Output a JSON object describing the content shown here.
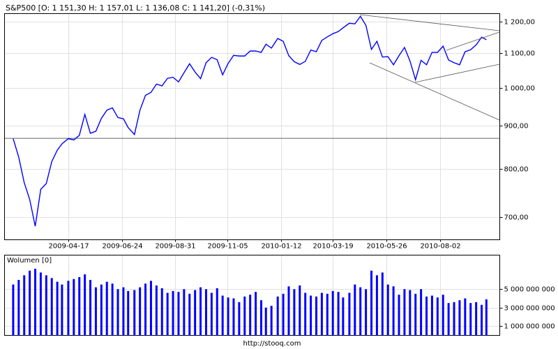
{
  "chart_data": [
    {
      "type": "line",
      "title": "S&P500 [O: 1 151,30  H: 1 157,01  L: 1 136,08  C: 1 141,20] (-0,31%)",
      "x": [
        "2009-02-06",
        "2009-02-13",
        "2009-02-20",
        "2009-02-27",
        "2009-03-06",
        "2009-03-13",
        "2009-03-20",
        "2009-03-27",
        "2009-04-03",
        "2009-04-09",
        "2009-04-17",
        "2009-04-24",
        "2009-05-01",
        "2009-05-08",
        "2009-05-15",
        "2009-05-22",
        "2009-05-29",
        "2009-06-05",
        "2009-06-12",
        "2009-06-19",
        "2009-06-26",
        "2009-07-02",
        "2009-07-10",
        "2009-07-17",
        "2009-07-24",
        "2009-07-31",
        "2009-08-07",
        "2009-08-14",
        "2009-08-21",
        "2009-08-28",
        "2009-09-04",
        "2009-09-11",
        "2009-09-18",
        "2009-09-25",
        "2009-10-02",
        "2009-10-09",
        "2009-10-16",
        "2009-10-23",
        "2009-10-30",
        "2009-11-06",
        "2009-11-13",
        "2009-11-20",
        "2009-11-27",
        "2009-12-04",
        "2009-12-11",
        "2009-12-18",
        "2009-12-24",
        "2009-12-31",
        "2010-01-08",
        "2010-01-15",
        "2010-01-22",
        "2010-01-29",
        "2010-02-05",
        "2010-02-12",
        "2010-02-19",
        "2010-02-26",
        "2010-03-05",
        "2010-03-12",
        "2010-03-19",
        "2010-03-26",
        "2010-04-01",
        "2010-04-09",
        "2010-04-16",
        "2010-04-23",
        "2010-04-30",
        "2010-05-07",
        "2010-05-14",
        "2010-05-21",
        "2010-05-28",
        "2010-06-04",
        "2010-06-11",
        "2010-06-18",
        "2010-06-25",
        "2010-07-02",
        "2010-07-09",
        "2010-07-16",
        "2010-07-23",
        "2010-07-30",
        "2010-08-06",
        "2010-08-13",
        "2010-08-20",
        "2010-08-27",
        "2010-09-03",
        "2010-09-10",
        "2010-09-17",
        "2010-09-24",
        "2010-09-30"
      ],
      "values": [
        869,
        826,
        770,
        735,
        683,
        756,
        768,
        816,
        842,
        857,
        869,
        866,
        877,
        929,
        882,
        887,
        919,
        940,
        946,
        921,
        918,
        896,
        879,
        940,
        979,
        987,
        1010,
        1005,
        1026,
        1029,
        1016,
        1042,
        1068,
        1044,
        1025,
        1071,
        1087,
        1080,
        1036,
        1069,
        1093,
        1091,
        1091,
        1106,
        1106,
        1102,
        1127,
        1115,
        1145,
        1136,
        1092,
        1074,
        1066,
        1075,
        1109,
        1104,
        1139,
        1150,
        1160,
        1167,
        1179,
        1194,
        1192,
        1217,
        1187,
        1111,
        1136,
        1088,
        1089,
        1065,
        1092,
        1117,
        1076,
        1022,
        1078,
        1065,
        1102,
        1102,
        1121,
        1079,
        1071,
        1065,
        1104,
        1110,
        1125,
        1149,
        1141
      ],
      "color": "#0000ff",
      "xlim": [
        "2009-01-26",
        "2010-10-17"
      ],
      "xticks": [
        "2009-04-17",
        "2009-06-24",
        "2009-08-31",
        "2009-11-05",
        "2010-01-12",
        "2010-03-19",
        "2010-05-26",
        "2010-08-02"
      ],
      "ylim": [
        658,
        1226
      ],
      "yticks": [
        {
          "value": 700,
          "label": "700,00"
        },
        {
          "value": 800,
          "label": "800,00"
        },
        {
          "value": 900,
          "label": "900,00"
        },
        {
          "value": 1000,
          "label": "1 000,00"
        },
        {
          "value": 1100,
          "label": "1 100,00"
        },
        {
          "value": 1200,
          "label": "1 200,00"
        }
      ],
      "log_scale": true,
      "grid": true,
      "reference_line": 870
    },
    {
      "type": "bar",
      "title": "Wolumen [0]",
      "x": [
        "2009-02-06",
        "2009-02-13",
        "2009-02-20",
        "2009-02-27",
        "2009-03-06",
        "2009-03-13",
        "2009-03-20",
        "2009-03-27",
        "2009-04-03",
        "2009-04-09",
        "2009-04-17",
        "2009-04-24",
        "2009-05-01",
        "2009-05-08",
        "2009-05-15",
        "2009-05-22",
        "2009-05-29",
        "2009-06-05",
        "2009-06-12",
        "2009-06-19",
        "2009-06-26",
        "2009-07-02",
        "2009-07-10",
        "2009-07-17",
        "2009-07-24",
        "2009-07-31",
        "2009-08-07",
        "2009-08-14",
        "2009-08-21",
        "2009-08-28",
        "2009-09-04",
        "2009-09-11",
        "2009-09-18",
        "2009-09-25",
        "2009-10-02",
        "2009-10-09",
        "2009-10-16",
        "2009-10-23",
        "2009-10-30",
        "2009-11-06",
        "2009-11-13",
        "2009-11-20",
        "2009-11-27",
        "2009-12-04",
        "2009-12-11",
        "2009-12-18",
        "2009-12-24",
        "2009-12-31",
        "2010-01-08",
        "2010-01-15",
        "2010-01-22",
        "2010-01-29",
        "2010-02-05",
        "2010-02-12",
        "2010-02-19",
        "2010-02-26",
        "2010-03-05",
        "2010-03-12",
        "2010-03-19",
        "2010-03-26",
        "2010-04-01",
        "2010-04-09",
        "2010-04-16",
        "2010-04-23",
        "2010-04-30",
        "2010-05-07",
        "2010-05-14",
        "2010-05-21",
        "2010-05-28",
        "2010-06-04",
        "2010-06-11",
        "2010-06-18",
        "2010-06-25",
        "2010-07-02",
        "2010-07-09",
        "2010-07-16",
        "2010-07-23",
        "2010-07-30",
        "2010-08-06",
        "2010-08-13",
        "2010-08-20",
        "2010-08-27",
        "2010-09-03",
        "2010-09-10",
        "2010-09-17",
        "2010-09-24",
        "2010-09-30"
      ],
      "values": [
        5500000000.0,
        6000000000.0,
        6500000000.0,
        7000000000.0,
        7200000000.0,
        6800000000.0,
        6500000000.0,
        6200000000.0,
        5800000000.0,
        5500000000.0,
        5900000000.0,
        6100000000.0,
        6300000000.0,
        6600000000.0,
        6000000000.0,
        5200000000.0,
        5500000000.0,
        5800000000.0,
        5600000000.0,
        5000000000.0,
        5200000000.0,
        4800000000.0,
        4900000000.0,
        5200000000.0,
        5600000000.0,
        5900000000.0,
        5400000000.0,
        5100000000.0,
        4600000000.0,
        4800000000.0,
        4700000000.0,
        5000000000.0,
        4500000000.0,
        4900000000.0,
        5200000000.0,
        5000000000.0,
        4600000000.0,
        5100000000.0,
        4300000000.0,
        4100000000.0,
        4000000000.0,
        3600000000.0,
        4200000000.0,
        4400000000.0,
        4700000000.0,
        3800000000.0,
        3000000000.0,
        3200000000.0,
        4200000000.0,
        4500000000.0,
        5300000000.0,
        5000000000.0,
        5400000000.0,
        4600000000.0,
        4300000000.0,
        4200000000.0,
        4600000000.0,
        4500000000.0,
        4800000000.0,
        4700000000.0,
        4100000000.0,
        4600000000.0,
        5500000000.0,
        5200000000.0,
        5000000000.0,
        7000000000.0,
        6500000000.0,
        6800000000.0,
        5500000000.0,
        5300000000.0,
        4400000000.0,
        5000000000.0,
        4900000000.0,
        4500000000.0,
        5000000000.0,
        4200000000.0,
        4300000000.0,
        4100000000.0,
        4400000000.0,
        3500000000.0,
        3600000000.0,
        3800000000.0,
        4000000000.0,
        3500000000.0,
        3600000000.0,
        3300000000.0,
        3900000000.0
      ],
      "color": "#0000ff",
      "xlim": [
        "2009-01-26",
        "2010-10-17"
      ],
      "ylim": [
        0,
        8680000000.0
      ],
      "yticks": [
        {
          "value": 1000000000,
          "label": "1 000 000 000"
        },
        {
          "value": 3000000000,
          "label": "3 000 000 000"
        },
        {
          "value": 5000000000,
          "label": "5 000 000 000"
        }
      ],
      "grid": true
    }
  ],
  "footer": "http://stooq.com"
}
